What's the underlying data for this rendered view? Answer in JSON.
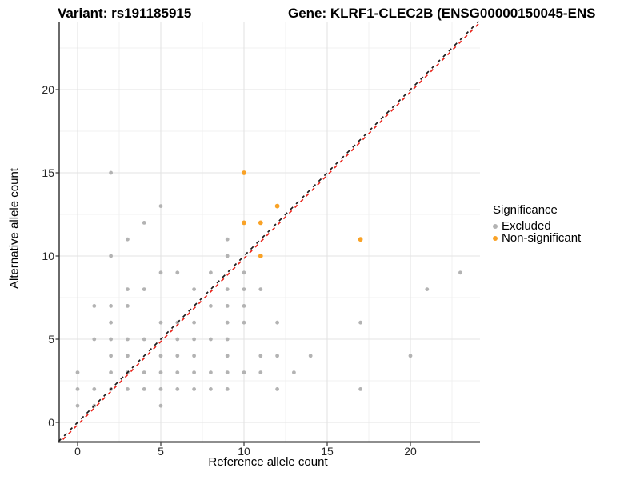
{
  "chart_data": {
    "type": "scatter",
    "title_variant": "Variant: rs191185915",
    "title_gene": "Gene: KLRF1-CLEC2B (ENSG00000150045-ENS",
    "xlabel": "Reference allele count",
    "ylabel": "Alternative allele count",
    "x_ticks": [
      0,
      5,
      10,
      15,
      20
    ],
    "y_ticks": [
      0,
      5,
      10,
      15,
      20
    ],
    "xlim": [
      -1.1,
      24.2
    ],
    "ylim": [
      -1.15,
      24.1
    ],
    "grid": {
      "major_ticks": [
        0,
        5,
        10,
        15,
        20
      ],
      "minor_ticks": [
        2.5,
        7.5,
        12.5,
        17.5,
        22.5
      ],
      "major_color": "#e3e3e3",
      "minor_color": "#f1f1f1"
    },
    "axis_colors": {
      "left_line": "#1a1a1a",
      "bottom_line": "#4a4a4a",
      "tick_mark": "#333333"
    },
    "identity_line": {
      "style": "dashed",
      "black_color": "#1a1a1a",
      "red_color": "#ea241b"
    },
    "legend": {
      "title": "Significance",
      "items": [
        {
          "label": "Excluded",
          "color": "#b3b3b3"
        },
        {
          "label": "Non-significant",
          "color": "#f9a226"
        }
      ]
    },
    "series": [
      {
        "name": "Excluded",
        "color": "#b3b3b3",
        "radius": 2.4,
        "points": [
          [
            0,
            1
          ],
          [
            0,
            2
          ],
          [
            0,
            3
          ],
          [
            1,
            1
          ],
          [
            1,
            2
          ],
          [
            1,
            5
          ],
          [
            1,
            7
          ],
          [
            2,
            2
          ],
          [
            2,
            3
          ],
          [
            2,
            4
          ],
          [
            2,
            5
          ],
          [
            2,
            6
          ],
          [
            2,
            7
          ],
          [
            2,
            10
          ],
          [
            2,
            15
          ],
          [
            3,
            2
          ],
          [
            3,
            3
          ],
          [
            3,
            4
          ],
          [
            3,
            5
          ],
          [
            3,
            7
          ],
          [
            3,
            8
          ],
          [
            3,
            11
          ],
          [
            4,
            2
          ],
          [
            4,
            3
          ],
          [
            4,
            5
          ],
          [
            4,
            8
          ],
          [
            4,
            12
          ],
          [
            5,
            1
          ],
          [
            5,
            2
          ],
          [
            5,
            3
          ],
          [
            5,
            4
          ],
          [
            5,
            6
          ],
          [
            5,
            9
          ],
          [
            5,
            13
          ],
          [
            6,
            2
          ],
          [
            6,
            3
          ],
          [
            6,
            4
          ],
          [
            6,
            5
          ],
          [
            6,
            6
          ],
          [
            6,
            9
          ],
          [
            7,
            2
          ],
          [
            7,
            3
          ],
          [
            7,
            4
          ],
          [
            7,
            5
          ],
          [
            7,
            6
          ],
          [
            7,
            8
          ],
          [
            8,
            2
          ],
          [
            8,
            3
          ],
          [
            8,
            5
          ],
          [
            8,
            7
          ],
          [
            8,
            9
          ],
          [
            9,
            2
          ],
          [
            9,
            3
          ],
          [
            9,
            4
          ],
          [
            9,
            5
          ],
          [
            9,
            6
          ],
          [
            9,
            7
          ],
          [
            9,
            8
          ],
          [
            9,
            10
          ],
          [
            9,
            11
          ],
          [
            10,
            3
          ],
          [
            10,
            6
          ],
          [
            10,
            7
          ],
          [
            10,
            8
          ],
          [
            10,
            9
          ],
          [
            11,
            3
          ],
          [
            11,
            4
          ],
          [
            11,
            8
          ],
          [
            12,
            2
          ],
          [
            12,
            4
          ],
          [
            12,
            6
          ],
          [
            13,
            3
          ],
          [
            14,
            4
          ],
          [
            17,
            2
          ],
          [
            17,
            6
          ],
          [
            20,
            4
          ],
          [
            21,
            8
          ],
          [
            23,
            9
          ]
        ]
      },
      {
        "name": "Non-significant",
        "color": "#f9a226",
        "radius": 2.9,
        "points": [
          [
            10,
            15
          ],
          [
            12,
            13
          ],
          [
            10,
            12
          ],
          [
            11,
            12
          ],
          [
            11,
            10
          ],
          [
            17,
            11
          ]
        ]
      }
    ]
  }
}
